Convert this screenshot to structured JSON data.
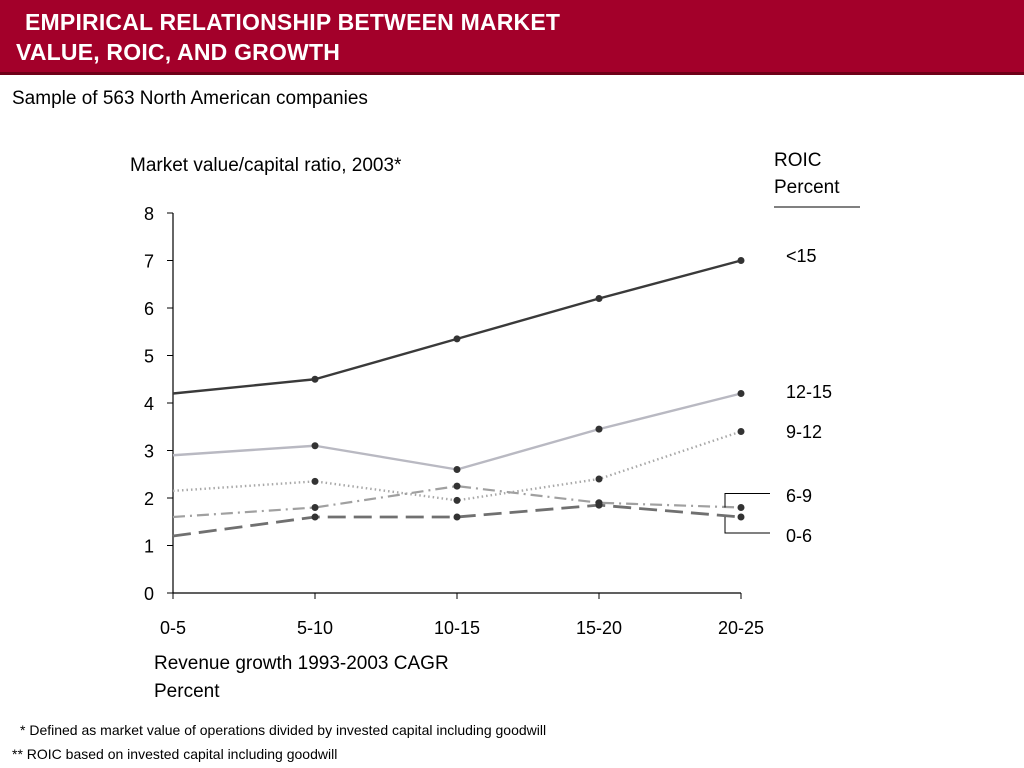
{
  "slide": {
    "title_line1": "EMPIRICAL RELATIONSHIP BETWEEN MARKET",
    "title_line2": "VALUE, ROIC, AND GROWTH",
    "subtitle": "Sample of 563 North American companies",
    "footnotes": [
      "* Defined as market value of operations divided by invested capital including goodwill",
      "** ROIC based on invested capital including goodwill"
    ]
  },
  "colors": {
    "header": "#a3002a",
    "roic_lt15": "#3a3a3a",
    "roic_12_15": "#b9b9c2",
    "roic_9_12": "#a8a8a8",
    "roic_6_9": "#a0a0a0",
    "roic_0_6": "#707070",
    "markers": "#333333"
  },
  "chart_data": {
    "type": "line",
    "title": "",
    "ylabel": "Market value/capital ratio, 2003*",
    "xlabel": [
      "Revenue growth 1993-2003 CAGR",
      "Percent"
    ],
    "legend_title": [
      "ROIC",
      "Percent"
    ],
    "legend_placement": "right",
    "grid": false,
    "ylim": [
      0,
      8
    ],
    "yticks": [
      "0",
      "1",
      "2",
      "3",
      "4",
      "5",
      "6",
      "7",
      "8"
    ],
    "categories": [
      "0-5",
      "5-10",
      "10-15",
      "15-20",
      "20-25"
    ],
    "series": [
      {
        "name": "<15",
        "style": "solid",
        "values": [
          4.2,
          4.5,
          5.35,
          6.2,
          7.0
        ]
      },
      {
        "name": "12-15",
        "style": "solid",
        "values": [
          2.9,
          3.1,
          2.6,
          3.45,
          4.2
        ]
      },
      {
        "name": "9-12",
        "style": "dotted",
        "values": [
          2.15,
          2.35,
          1.95,
          2.4,
          3.4
        ]
      },
      {
        "name": "6-9",
        "style": "dash-dot",
        "values": [
          1.6,
          1.8,
          2.25,
          1.9,
          1.8
        ]
      },
      {
        "name": "0-6",
        "style": "long-dashed",
        "values": [
          1.2,
          1.6,
          1.6,
          1.85,
          1.6
        ]
      }
    ]
  }
}
